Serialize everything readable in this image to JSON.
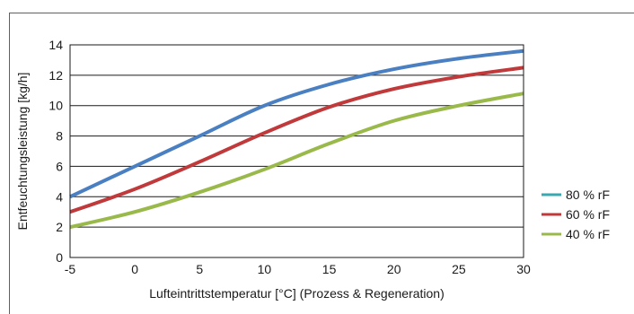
{
  "chart_data": {
    "type": "line",
    "title": "",
    "xlabel": "Lufteintrittstemperatur [°C] (Prozess & Regeneration)",
    "ylabel": "Entfeuchtungsleistung [kg/h]",
    "xlim": [
      -5,
      30
    ],
    "ylim": [
      0,
      14
    ],
    "x_ticks": [
      -5,
      0,
      5,
      10,
      15,
      20,
      25,
      30
    ],
    "y_ticks": [
      0,
      2,
      4,
      6,
      8,
      10,
      12,
      14
    ],
    "grid": "horizontal",
    "legend_position": "right",
    "series": [
      {
        "name": "80 % rF",
        "color": "#4a7fc1",
        "legend_color": "#3aa8b0",
        "x": [
          -5,
          0,
          5,
          10,
          15,
          20,
          25,
          30
        ],
        "values": [
          4.0,
          6.0,
          8.0,
          10.0,
          11.4,
          12.4,
          13.1,
          13.6
        ]
      },
      {
        "name": "60 % rF",
        "color": "#c0393b",
        "legend_color": "#c0393b",
        "x": [
          -5,
          0,
          5,
          10,
          15,
          20,
          25,
          30
        ],
        "values": [
          3.0,
          4.5,
          6.3,
          8.2,
          9.9,
          11.1,
          11.9,
          12.5
        ]
      },
      {
        "name": "40 % rF",
        "color": "#9ab94b",
        "legend_color": "#9ab94b",
        "x": [
          -5,
          0,
          5,
          10,
          15,
          20,
          25,
          30
        ],
        "values": [
          2.0,
          3.0,
          4.3,
          5.8,
          7.5,
          9.0,
          10.0,
          10.8
        ]
      }
    ]
  }
}
